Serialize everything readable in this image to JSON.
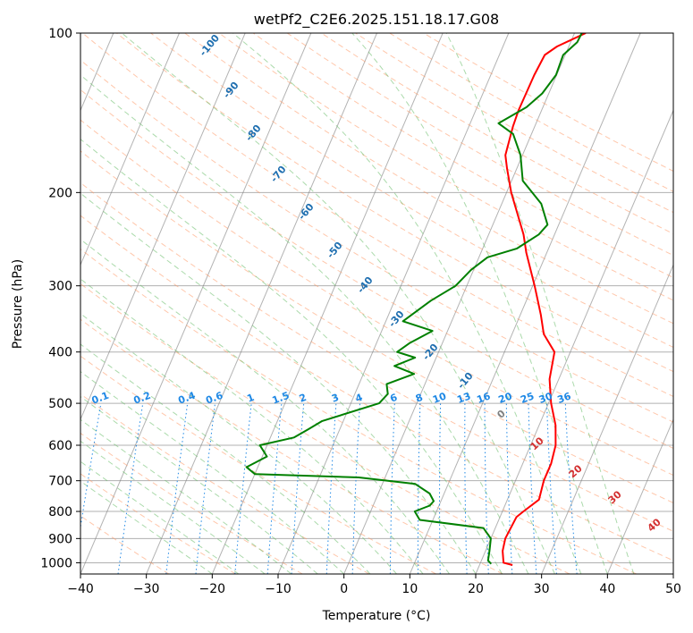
{
  "chart_data": {
    "type": "line",
    "title": "wetPf2_C2E6.2025.151.18.17.G08",
    "xlabel": "Temperature (°C)",
    "ylabel": "Pressure (hPa)",
    "xlim": [
      -40,
      50
    ],
    "ylim": [
      1050,
      100
    ],
    "y_scale": "log",
    "grid": true,
    "x_ticks": [
      -40,
      -30,
      -20,
      -10,
      0,
      10,
      20,
      30,
      40,
      50
    ],
    "y_ticks": [
      100,
      200,
      300,
      400,
      500,
      600,
      700,
      800,
      900,
      1000
    ],
    "colors": {
      "temperature": "#ff0000",
      "dewpoint": "#008000",
      "dry_adiabats": "#ff9966",
      "moist_adiabats": "#66bb66",
      "mixing_ratio": "#1e88e5",
      "isotherms": "#808080"
    },
    "mixing_ratio_labels": [
      "0.1",
      "0.2",
      "0.4",
      "0.6",
      "1",
      "1.5",
      "2",
      "3",
      "4",
      "6",
      "8",
      "10",
      "13",
      "16",
      "20",
      "25",
      "30",
      "36"
    ],
    "mixing_ratio_values": [
      0.1,
      0.2,
      0.4,
      0.6,
      1,
      1.5,
      2,
      3,
      4,
      6,
      8,
      10,
      13,
      16,
      20,
      25,
      30,
      36
    ],
    "dry_adiabat_labels": [
      "-100",
      "-90",
      "-80",
      "-70",
      "-60",
      "-50",
      "-40",
      "-30",
      "-20",
      "-10"
    ],
    "moist_adiabat_labels": [
      "0",
      "10",
      "20",
      "30",
      "40"
    ],
    "series": [
      {
        "name": "Temperature",
        "points": [
          [
            25.0,
            1010
          ],
          [
            23.5,
            1000
          ],
          [
            22.6,
            950
          ],
          [
            22.2,
            900
          ],
          [
            22.5,
            820
          ],
          [
            23.2,
            800
          ],
          [
            24.8,
            760
          ],
          [
            24.3,
            700
          ],
          [
            24.3,
            650
          ],
          [
            23.8,
            600
          ],
          [
            22.5,
            550
          ],
          [
            20.4,
            500
          ],
          [
            18.6,
            450
          ],
          [
            17.6,
            400
          ],
          [
            14.8,
            370
          ],
          [
            13.1,
            340
          ],
          [
            10.3,
            300
          ],
          [
            6.9,
            260
          ],
          [
            5.3,
            240
          ],
          [
            3.1,
            220
          ],
          [
            0.7,
            200
          ],
          [
            -1.5,
            180
          ],
          [
            -2.6,
            170
          ],
          [
            -3.3,
            150
          ],
          [
            -3.5,
            140
          ],
          [
            -3.4,
            120
          ],
          [
            -3.1,
            110
          ],
          [
            -1.8,
            106
          ],
          [
            1.7,
            100
          ]
        ]
      },
      {
        "name": "Dewpoint",
        "points": [
          [
            21.7,
            1005
          ],
          [
            21.0,
            990
          ],
          [
            20.6,
            950
          ],
          [
            20.0,
            900
          ],
          [
            18.2,
            860
          ],
          [
            8.0,
            830
          ],
          [
            6.7,
            800
          ],
          [
            8.6,
            780
          ],
          [
            8.9,
            765
          ],
          [
            7.8,
            740
          ],
          [
            5.0,
            710
          ],
          [
            -4.0,
            690
          ],
          [
            -20.0,
            680
          ],
          [
            -21.7,
            660
          ],
          [
            -19.3,
            630
          ],
          [
            -21.1,
            600
          ],
          [
            -16.4,
            580
          ],
          [
            -14.8,
            560
          ],
          [
            -13.2,
            540
          ],
          [
            -5.7,
            500
          ],
          [
            -5.0,
            480
          ],
          [
            -5.8,
            460
          ],
          [
            -2.3,
            440
          ],
          [
            -5.8,
            425
          ],
          [
            -3.2,
            410
          ],
          [
            -6.3,
            400
          ],
          [
            -5.0,
            385
          ],
          [
            -2.3,
            365
          ],
          [
            -7.4,
            350
          ],
          [
            -4.5,
            320
          ],
          [
            -1.7,
            300
          ],
          [
            -0.4,
            280
          ],
          [
            1.3,
            265
          ],
          [
            5.2,
            255
          ],
          [
            7.6,
            240
          ],
          [
            8.3,
            230
          ],
          [
            6.0,
            210
          ],
          [
            1.7,
            190
          ],
          [
            -0.3,
            170
          ],
          [
            -2.8,
            155
          ],
          [
            -5.7,
            148
          ],
          [
            -2.5,
            138
          ],
          [
            -1.0,
            130
          ],
          [
            -0.1,
            120
          ],
          [
            -0.3,
            110
          ],
          [
            1.0,
            104
          ],
          [
            1.1,
            100
          ]
        ]
      }
    ]
  }
}
